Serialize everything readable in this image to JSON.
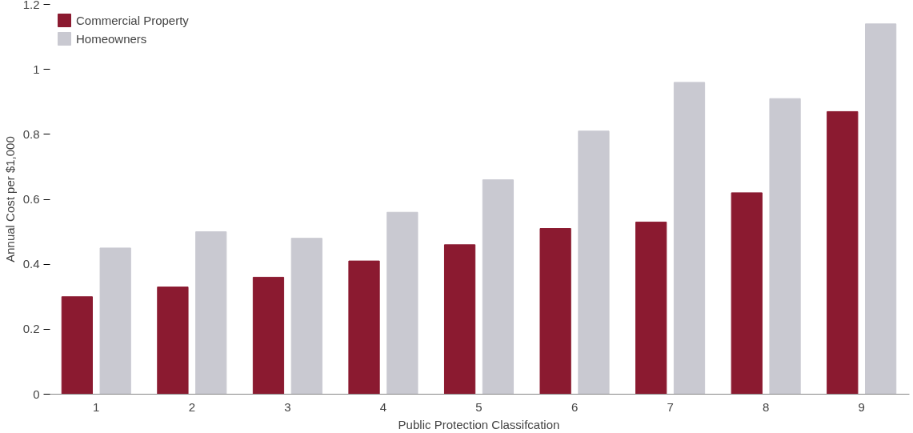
{
  "chart_data": {
    "type": "bar",
    "categories": [
      "1",
      "2",
      "3",
      "4",
      "5",
      "6",
      "7",
      "8",
      "9"
    ],
    "series": [
      {
        "name": "Commercial Property",
        "color": "#8b1a30",
        "values": [
          0.3,
          0.33,
          0.36,
          0.41,
          0.46,
          0.51,
          0.53,
          0.62,
          0.87
        ]
      },
      {
        "name": "Homeowners",
        "color": "#c9c9d1",
        "values": [
          0.45,
          0.5,
          0.48,
          0.56,
          0.66,
          0.81,
          0.96,
          0.91,
          1.14
        ]
      }
    ],
    "xlabel": "Public Protection Classifcation",
    "ylabel": "Annual Cost per $1,000",
    "ylim": [
      0,
      1.2
    ],
    "yticks": [
      0,
      {
        "value": 0.2,
        "label": "0.2"
      },
      {
        "value": 0.4,
        "label": "0.4"
      },
      {
        "value": 0.6,
        "label": "0.6"
      },
      {
        "value": 0.8,
        "label": "0.8"
      },
      1,
      {
        "value": 1.2,
        "label": "1.2"
      }
    ],
    "grid": false,
    "legend": "top left"
  }
}
